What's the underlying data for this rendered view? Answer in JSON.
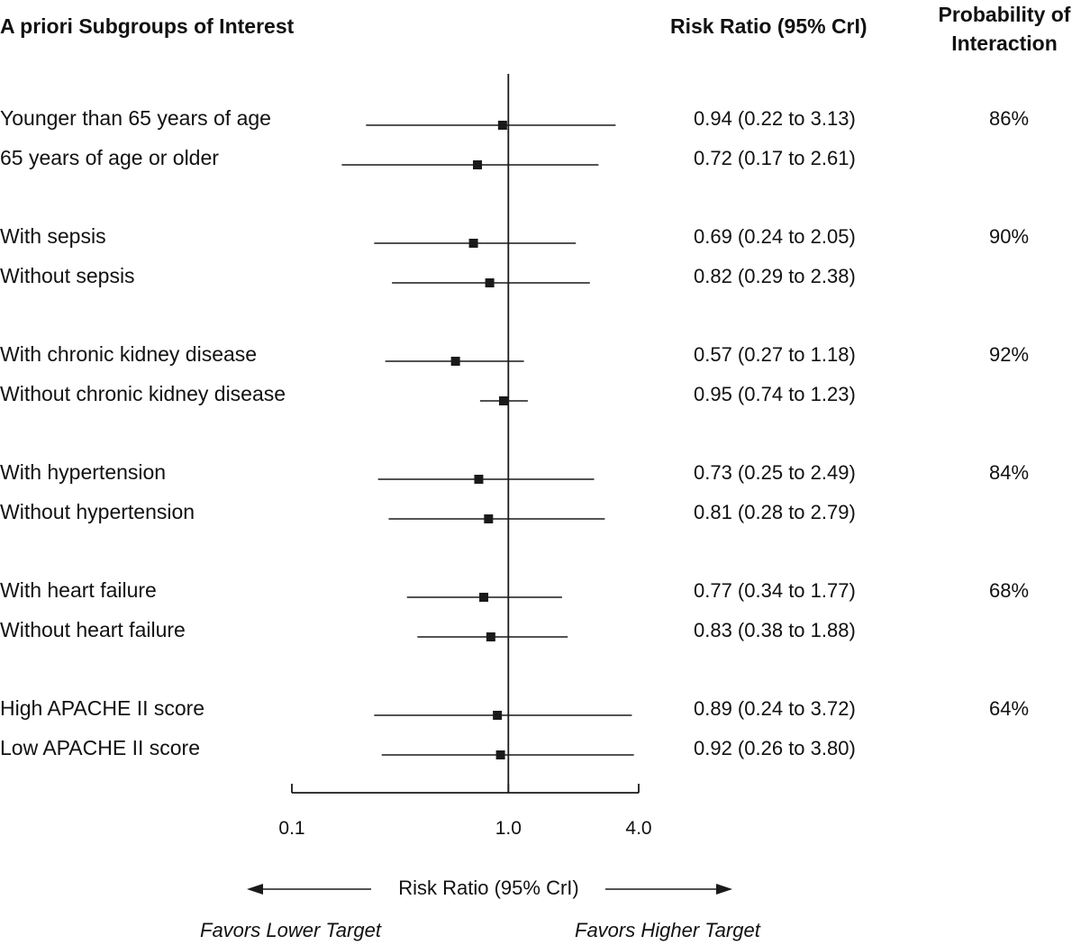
{
  "headers": {
    "subgroups": "A priori Subgroups of Interest",
    "risk_ratio": "Risk Ratio (95% CrI)",
    "probability_line1": "Probability of",
    "probability_line2": "Interaction"
  },
  "axis": {
    "title": "Risk Ratio (95% CrI)",
    "favors_lower": "Favors Lower Target",
    "favors_higher": "Favors Higher Target"
  },
  "colors": {
    "ink": "#1a1a1a"
  },
  "chart_data": {
    "type": "forest",
    "xscale": "log",
    "xlim": [
      0.1,
      4.0
    ],
    "reference_line": 1.0,
    "ticks": [
      {
        "value": 0.1,
        "label": "0.1"
      },
      {
        "value": 1.0,
        "label": "1.0"
      },
      {
        "value": 4.0,
        "label": "4.0"
      }
    ],
    "xlabel": "Risk Ratio (95% CrI)",
    "groups": [
      {
        "probability": "86%",
        "rows": [
          {
            "label": "Younger than 65 years of age",
            "estimate": 0.94,
            "lower": 0.22,
            "upper": 3.13,
            "text": "0.94 (0.22 to 3.13)"
          },
          {
            "label": "65 years of age or older",
            "estimate": 0.72,
            "lower": 0.17,
            "upper": 2.61,
            "text": "0.72 (0.17 to 2.61)"
          }
        ]
      },
      {
        "probability": "90%",
        "rows": [
          {
            "label": "With sepsis",
            "estimate": 0.69,
            "lower": 0.24,
            "upper": 2.05,
            "text": "0.69 (0.24 to 2.05)"
          },
          {
            "label": "Without sepsis",
            "estimate": 0.82,
            "lower": 0.29,
            "upper": 2.38,
            "text": "0.82 (0.29 to 2.38)"
          }
        ]
      },
      {
        "probability": "92%",
        "rows": [
          {
            "label": "With chronic kidney disease",
            "estimate": 0.57,
            "lower": 0.27,
            "upper": 1.18,
            "text": "0.57 (0.27 to 1.18)"
          },
          {
            "label": "Without chronic kidney disease",
            "estimate": 0.95,
            "lower": 0.74,
            "upper": 1.23,
            "text": "0.95 (0.74 to 1.23)"
          }
        ]
      },
      {
        "probability": "84%",
        "rows": [
          {
            "label": "With hypertension",
            "estimate": 0.73,
            "lower": 0.25,
            "upper": 2.49,
            "text": "0.73 (0.25 to 2.49)"
          },
          {
            "label": "Without hypertension",
            "estimate": 0.81,
            "lower": 0.28,
            "upper": 2.79,
            "text": "0.81 (0.28 to 2.79)"
          }
        ]
      },
      {
        "probability": "68%",
        "rows": [
          {
            "label": "With heart failure",
            "estimate": 0.77,
            "lower": 0.34,
            "upper": 1.77,
            "text": "0.77 (0.34 to 1.77)"
          },
          {
            "label": "Without heart failure",
            "estimate": 0.83,
            "lower": 0.38,
            "upper": 1.88,
            "text": "0.83 (0.38 to 1.88)"
          }
        ]
      },
      {
        "probability": "64%",
        "rows": [
          {
            "label": "High APACHE II score",
            "estimate": 0.89,
            "lower": 0.24,
            "upper": 3.72,
            "text": "0.89 (0.24 to 3.72)"
          },
          {
            "label": "Low APACHE II score",
            "estimate": 0.92,
            "lower": 0.26,
            "upper": 3.8,
            "text": "0.92 (0.26 to 3.80)"
          }
        ]
      }
    ]
  }
}
